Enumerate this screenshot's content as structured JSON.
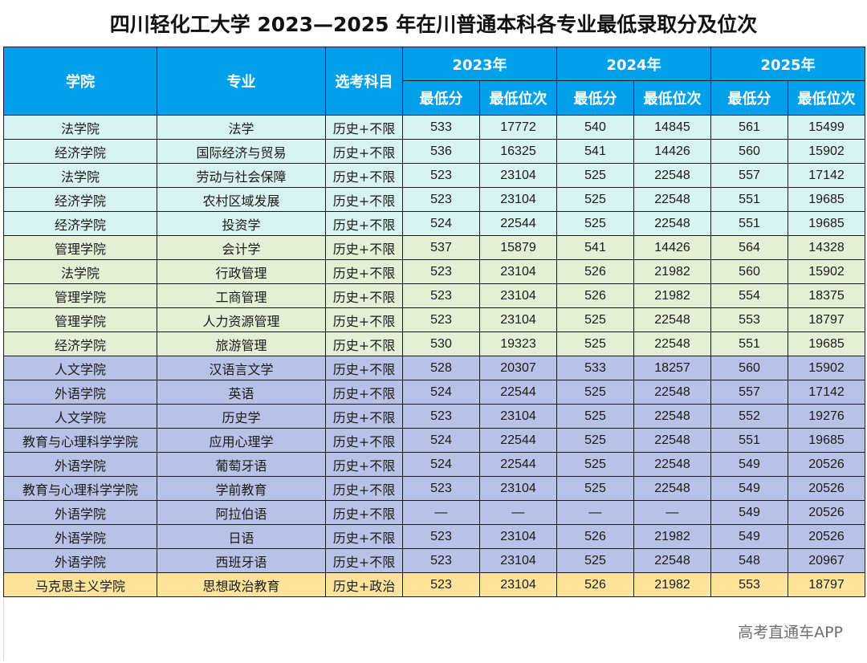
{
  "title": "四川轻化工大学 2023—2025 年在川普通本科各专业最低录取分及位次",
  "header": {
    "college": "学院",
    "major": "专业",
    "subject": "选考科目",
    "years": [
      "2023年",
      "2024年",
      "2025年"
    ],
    "min_score": "最低分",
    "min_rank": "最低位次"
  },
  "colors": {
    "header": "#00a0ea",
    "teal": "#d7f2f1",
    "green": "#e3f0d6",
    "blue": "#b7c2e6",
    "yellow": "#fde49a"
  },
  "rows": [
    {
      "group": "teal",
      "college": "法学院",
      "major": "法学",
      "subject": "历史+不限",
      "s23": "533",
      "r23": "17772",
      "s24": "540",
      "r24": "14845",
      "s25": "561",
      "r25": "15499"
    },
    {
      "group": "teal",
      "college": "经济学院",
      "major": "国际经济与贸易",
      "subject": "历史+不限",
      "s23": "536",
      "r23": "16325",
      "s24": "541",
      "r24": "14426",
      "s25": "560",
      "r25": "15902"
    },
    {
      "group": "teal",
      "college": "法学院",
      "major": "劳动与社会保障",
      "subject": "历史+不限",
      "s23": "523",
      "r23": "23104",
      "s24": "525",
      "r24": "22548",
      "s25": "557",
      "r25": "17142"
    },
    {
      "group": "teal",
      "college": "经济学院",
      "major": "农村区域发展",
      "subject": "历史+不限",
      "s23": "523",
      "r23": "23104",
      "s24": "525",
      "r24": "22548",
      "s25": "551",
      "r25": "19685"
    },
    {
      "group": "teal",
      "college": "经济学院",
      "major": "投资学",
      "subject": "历史+不限",
      "s23": "524",
      "r23": "22544",
      "s24": "525",
      "r24": "22548",
      "s25": "551",
      "r25": "19685"
    },
    {
      "group": "green",
      "college": "管理学院",
      "major": "会计学",
      "subject": "历史+不限",
      "s23": "537",
      "r23": "15879",
      "s24": "541",
      "r24": "14426",
      "s25": "564",
      "r25": "14328"
    },
    {
      "group": "green",
      "college": "法学院",
      "major": "行政管理",
      "subject": "历史+不限",
      "s23": "523",
      "r23": "23104",
      "s24": "526",
      "r24": "21982",
      "s25": "560",
      "r25": "15902"
    },
    {
      "group": "green",
      "college": "管理学院",
      "major": "工商管理",
      "subject": "历史+不限",
      "s23": "523",
      "r23": "23104",
      "s24": "526",
      "r24": "21982",
      "s25": "554",
      "r25": "18375"
    },
    {
      "group": "green",
      "college": "管理学院",
      "major": "人力资源管理",
      "subject": "历史+不限",
      "s23": "523",
      "r23": "23104",
      "s24": "525",
      "r24": "22548",
      "s25": "553",
      "r25": "18797"
    },
    {
      "group": "green",
      "college": "经济学院",
      "major": "旅游管理",
      "subject": "历史+不限",
      "s23": "530",
      "r23": "19323",
      "s24": "525",
      "r24": "22548",
      "s25": "551",
      "r25": "19685"
    },
    {
      "group": "blue",
      "college": "人文学院",
      "major": "汉语言文学",
      "subject": "历史+不限",
      "s23": "528",
      "r23": "20307",
      "s24": "533",
      "r24": "18257",
      "s25": "560",
      "r25": "15902"
    },
    {
      "group": "blue",
      "college": "外语学院",
      "major": "英语",
      "subject": "历史+不限",
      "s23": "524",
      "r23": "22544",
      "s24": "525",
      "r24": "22548",
      "s25": "557",
      "r25": "17142"
    },
    {
      "group": "blue",
      "college": "人文学院",
      "major": "历史学",
      "subject": "历史+不限",
      "s23": "523",
      "r23": "23104",
      "s24": "525",
      "r24": "22548",
      "s25": "552",
      "r25": "19276"
    },
    {
      "group": "blue",
      "college": "教育与心理科学学院",
      "major": "应用心理学",
      "subject": "历史+不限",
      "s23": "524",
      "r23": "22544",
      "s24": "525",
      "r24": "22548",
      "s25": "551",
      "r25": "19685"
    },
    {
      "group": "blue",
      "college": "外语学院",
      "major": "葡萄牙语",
      "subject": "历史+不限",
      "s23": "524",
      "r23": "22544",
      "s24": "525",
      "r24": "22548",
      "s25": "549",
      "r25": "20526"
    },
    {
      "group": "blue",
      "college": "教育与心理科学学院",
      "major": "学前教育",
      "subject": "历史+不限",
      "s23": "523",
      "r23": "23104",
      "s24": "525",
      "r24": "22548",
      "s25": "549",
      "r25": "20526"
    },
    {
      "group": "blue",
      "college": "外语学院",
      "major": "阿拉伯语",
      "subject": "历史+不限",
      "s23": "—",
      "r23": "—",
      "s24": "—",
      "r24": "—",
      "s25": "549",
      "r25": "20526"
    },
    {
      "group": "blue",
      "college": "外语学院",
      "major": "日语",
      "subject": "历史+不限",
      "s23": "523",
      "r23": "23104",
      "s24": "526",
      "r24": "21982",
      "s25": "549",
      "r25": "20526"
    },
    {
      "group": "blue",
      "college": "外语学院",
      "major": "西班牙语",
      "subject": "历史+不限",
      "s23": "523",
      "r23": "23104",
      "s24": "525",
      "r24": "22548",
      "s25": "548",
      "r25": "20967"
    },
    {
      "group": "yellow",
      "college": "马克思主义学院",
      "major": "思想政治教育",
      "subject": "历史+政治",
      "s23": "523",
      "r23": "23104",
      "s24": "526",
      "r24": "21982",
      "s25": "553",
      "r25": "18797"
    }
  ],
  "watermark": "高考直通车APP"
}
